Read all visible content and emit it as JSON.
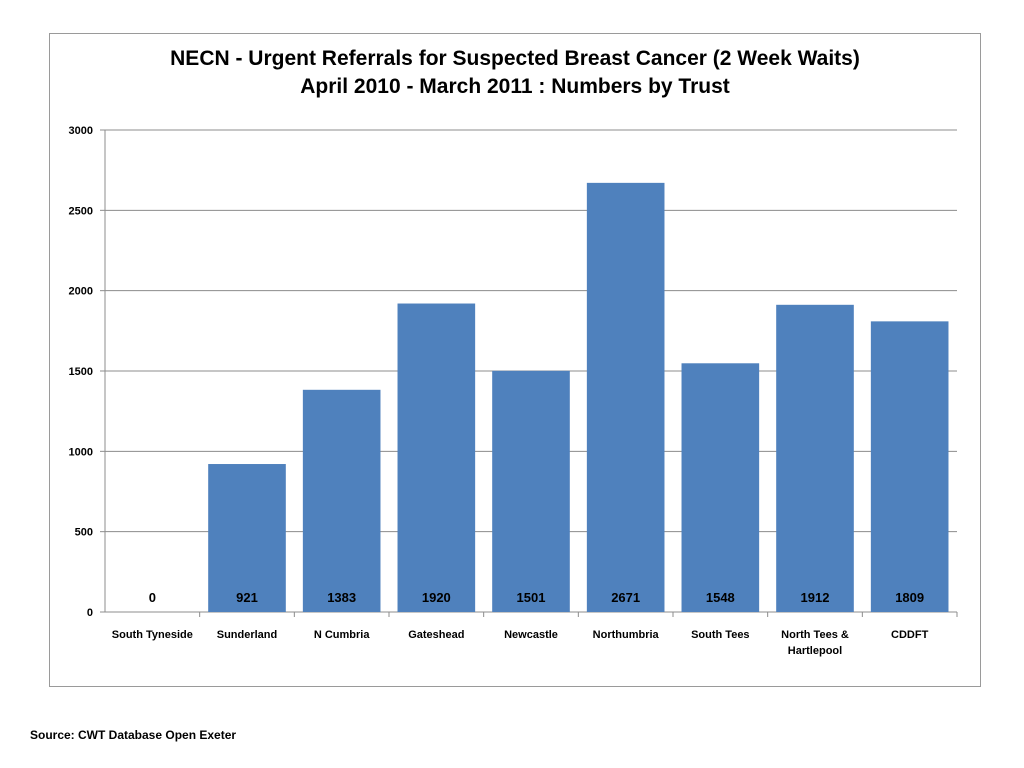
{
  "chart_data": {
    "type": "bar",
    "title": "NECN - Urgent Referrals for Suspected Breast Cancer (2 Week Waits)",
    "subtitle": "April 2010 - March 2011 : Numbers by Trust",
    "categories": [
      [
        "South Tyneside"
      ],
      [
        "Sunderland"
      ],
      [
        "N Cumbria"
      ],
      [
        "Gateshead"
      ],
      [
        "Newcastle"
      ],
      [
        "Northumbria"
      ],
      [
        "South Tees"
      ],
      [
        "North Tees &",
        "Hartlepool"
      ],
      [
        "CDDFT"
      ]
    ],
    "values": [
      0,
      921,
      1383,
      1920,
      1501,
      2671,
      1548,
      1912,
      1809
    ],
    "data_labels": [
      "0",
      "921",
      "1383",
      "1920",
      "1501",
      "2671",
      "1548",
      "1912",
      "1809"
    ],
    "y_ticks": [
      "0",
      "500",
      "1000",
      "1500",
      "2000",
      "2500",
      "3000"
    ],
    "ylim": [
      0,
      3000
    ],
    "y_step": 500,
    "xlabel": "",
    "ylabel": "",
    "grid": true,
    "legend": "none",
    "bar_color": "#4f81bd",
    "grid_color": "#8c8c8c"
  },
  "footer": {
    "source": "Source: CWT Database Open Exeter"
  }
}
